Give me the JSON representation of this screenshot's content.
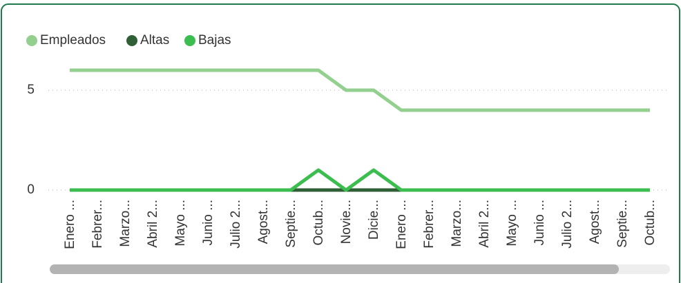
{
  "chart_data": {
    "type": "line",
    "categories": [
      "Enero ...",
      "Febrer...",
      "Marzo...",
      "Abril 2...",
      "Mayo ...",
      "Junio ...",
      "Julio 2...",
      "Agost...",
      "Septie...",
      "Octub...",
      "Novie...",
      "Dicie...",
      "Enero ...",
      "Febrer...",
      "Marzo...",
      "Abril 2...",
      "Mayo ...",
      "Junio ...",
      "Julio 2...",
      "Agost...",
      "Septie...",
      "Octub..."
    ],
    "series": [
      {
        "name": "Empleados",
        "color": "#93cf8f",
        "values": [
          6,
          6,
          6,
          6,
          6,
          6,
          6,
          6,
          6,
          6,
          5,
          5,
          4,
          4,
          4,
          4,
          4,
          4,
          4,
          4,
          4,
          4
        ]
      },
      {
        "name": "Altas",
        "color": "#2f5f35",
        "values": [
          0,
          0,
          0,
          0,
          0,
          0,
          0,
          0,
          0,
          0,
          0,
          0,
          0,
          0,
          0,
          0,
          0,
          0,
          0,
          0,
          0,
          0
        ]
      },
      {
        "name": "Bajas",
        "color": "#3bbd4f",
        "values": [
          0,
          0,
          0,
          0,
          0,
          0,
          0,
          0,
          0,
          1,
          0,
          1,
          0,
          0,
          0,
          0,
          0,
          0,
          0,
          0,
          0,
          0
        ]
      }
    ],
    "ylim": [
      0,
      6.5
    ],
    "yticks": [
      0,
      5
    ],
    "grid": true
  }
}
